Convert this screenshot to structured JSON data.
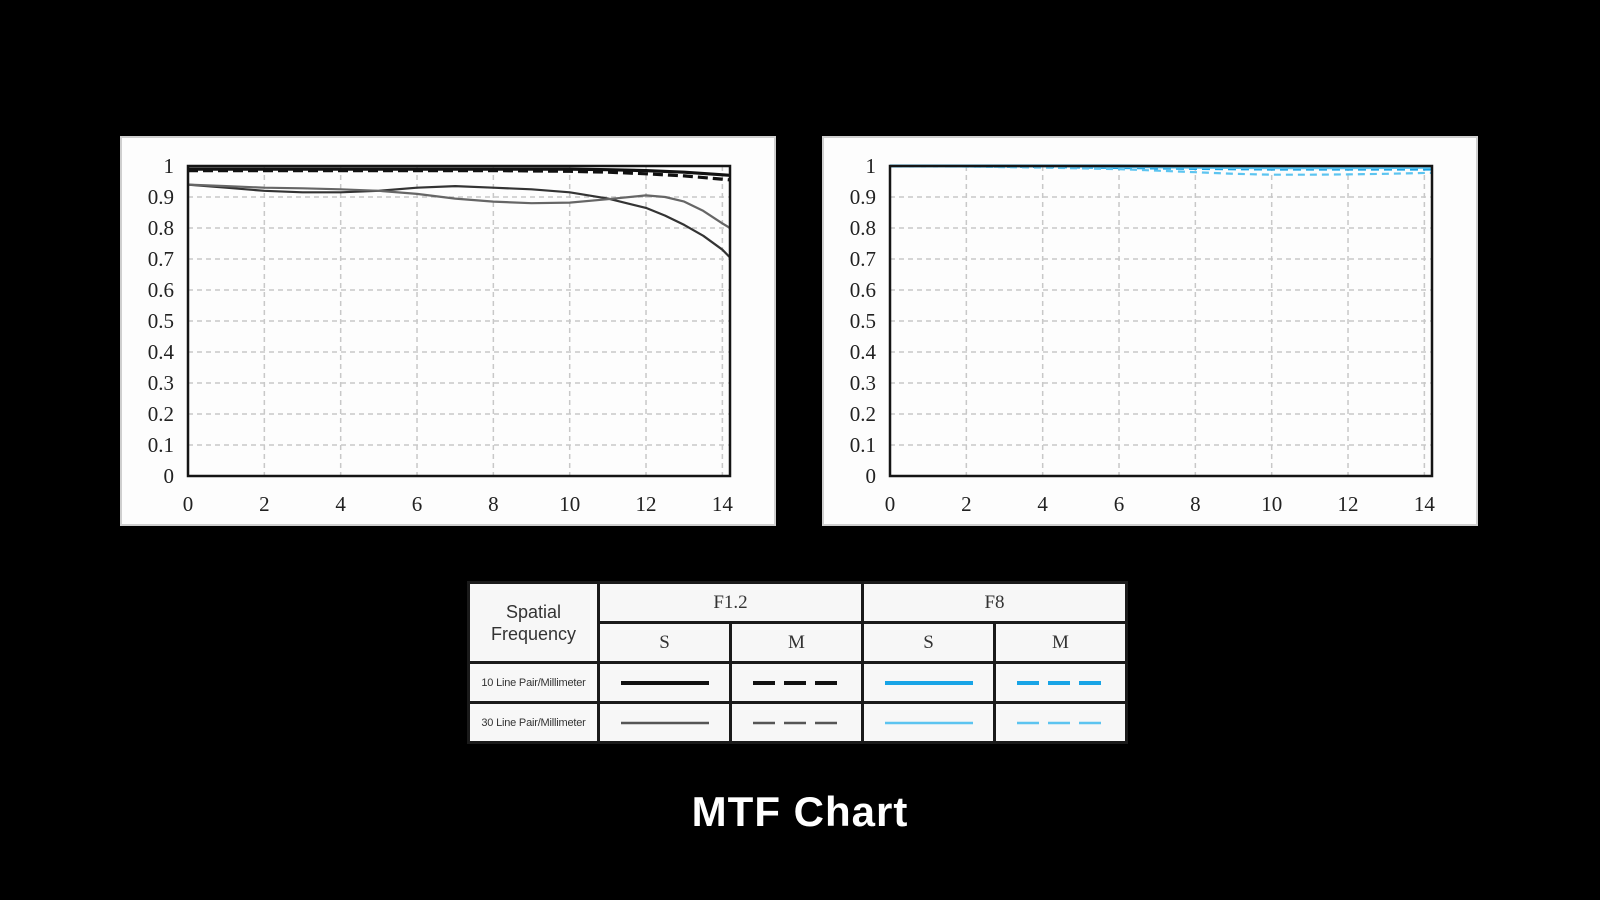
{
  "title": "MTF Chart",
  "chart_data": [
    {
      "type": "line",
      "aperture": "F1.2",
      "xlim": [
        0,
        14.2
      ],
      "ylim": [
        0,
        1
      ],
      "x_ticks": [
        "0",
        "2",
        "4",
        "6",
        "8",
        "10",
        "12",
        "14"
      ],
      "y_ticks": [
        "0",
        "0.1",
        "0.2",
        "0.3",
        "0.4",
        "0.5",
        "0.6",
        "0.7",
        "0.8",
        "0.9",
        "1"
      ],
      "grid": true,
      "series": [
        {
          "color": "#111111",
          "width": 3.2,
          "dash": "none",
          "x": [
            0,
            2,
            4,
            6,
            8,
            10,
            11,
            12,
            13,
            14.2
          ],
          "y": [
            0.99,
            0.99,
            0.99,
            0.99,
            0.99,
            0.99,
            0.988,
            0.985,
            0.98,
            0.97
          ]
        },
        {
          "color": "#111111",
          "width": 3.2,
          "dash": "10 5",
          "x": [
            0,
            2,
            4,
            6,
            8,
            10,
            11,
            12,
            13,
            14.2
          ],
          "y": [
            0.985,
            0.985,
            0.985,
            0.985,
            0.985,
            0.983,
            0.98,
            0.975,
            0.968,
            0.955
          ]
        },
        {
          "color": "#333333",
          "width": 2.2,
          "dash": "none",
          "x": [
            0,
            1,
            2,
            3,
            4,
            5,
            6,
            7,
            8,
            9,
            10,
            11,
            12,
            12.5,
            13,
            13.5,
            14,
            14.2
          ],
          "y": [
            0.94,
            0.93,
            0.92,
            0.915,
            0.915,
            0.92,
            0.93,
            0.935,
            0.93,
            0.925,
            0.915,
            0.895,
            0.865,
            0.84,
            0.81,
            0.775,
            0.73,
            0.705
          ]
        },
        {
          "color": "#666666",
          "width": 2.2,
          "dash": "none",
          "x": [
            0,
            1,
            2,
            3,
            4,
            5,
            6,
            7,
            8,
            9,
            10,
            11,
            12,
            12.5,
            13,
            13.5,
            14,
            14.2
          ],
          "y": [
            0.94,
            0.935,
            0.93,
            0.928,
            0.925,
            0.92,
            0.91,
            0.895,
            0.885,
            0.88,
            0.882,
            0.893,
            0.905,
            0.9,
            0.885,
            0.855,
            0.815,
            0.8
          ]
        }
      ]
    },
    {
      "type": "line",
      "aperture": "F8",
      "xlim": [
        0,
        14.2
      ],
      "ylim": [
        0,
        1
      ],
      "x_ticks": [
        "0",
        "2",
        "4",
        "6",
        "8",
        "10",
        "12",
        "14"
      ],
      "y_ticks": [
        "0",
        "0.1",
        "0.2",
        "0.3",
        "0.4",
        "0.5",
        "0.6",
        "0.7",
        "0.8",
        "0.9",
        "1"
      ],
      "grid": true,
      "series": [
        {
          "color": "#18a4e6",
          "width": 3,
          "dash": "none",
          "x": [
            0,
            2,
            4,
            6,
            8,
            10,
            12,
            14.2
          ],
          "y": [
            1,
            1,
            1,
            1,
            0.998,
            0.998,
            0.998,
            0.998
          ]
        },
        {
          "color": "#18a4e6",
          "width": 3,
          "dash": "8 5",
          "x": [
            0,
            2,
            4,
            6,
            8,
            10,
            12,
            14.2
          ],
          "y": [
            1,
            1,
            0.998,
            0.995,
            0.992,
            0.99,
            0.99,
            0.99
          ]
        },
        {
          "color": "#5cc4f0",
          "width": 2.2,
          "dash": "none",
          "x": [
            0,
            2,
            4,
            6,
            8,
            10,
            12,
            14.2
          ],
          "y": [
            1,
            1,
            0.999,
            0.997,
            0.995,
            0.993,
            0.993,
            0.995
          ]
        },
        {
          "color": "#5cc4f0",
          "width": 2.2,
          "dash": "7 5",
          "x": [
            0,
            2,
            4,
            6,
            8,
            9,
            10,
            11,
            12,
            13,
            14.2
          ],
          "y": [
            1,
            0.998,
            0.995,
            0.99,
            0.98,
            0.975,
            0.972,
            0.972,
            0.973,
            0.975,
            0.978
          ]
        }
      ]
    }
  ],
  "legend": {
    "header": "Spatial\nFrequency",
    "apertures": [
      "F1.2",
      "F8"
    ],
    "columns": [
      "S",
      "M",
      "S",
      "M"
    ],
    "rows": [
      {
        "label": "10 Line Pair/Millimeter",
        "swatches": [
          {
            "color": "#111111",
            "dash": "none",
            "width": 4
          },
          {
            "color": "#111111",
            "dash": "22 9",
            "width": 4
          },
          {
            "color": "#18a4e6",
            "dash": "none",
            "width": 4
          },
          {
            "color": "#18a4e6",
            "dash": "22 9",
            "width": 4
          }
        ]
      },
      {
        "label": "30 Line Pair/Millimeter",
        "swatches": [
          {
            "color": "#555555",
            "dash": "none",
            "width": 2.5
          },
          {
            "color": "#555555",
            "dash": "22 9",
            "width": 2.5
          },
          {
            "color": "#5cc4f0",
            "dash": "none",
            "width": 2.5
          },
          {
            "color": "#5cc4f0",
            "dash": "22 9",
            "width": 2.5
          }
        ]
      }
    ]
  }
}
